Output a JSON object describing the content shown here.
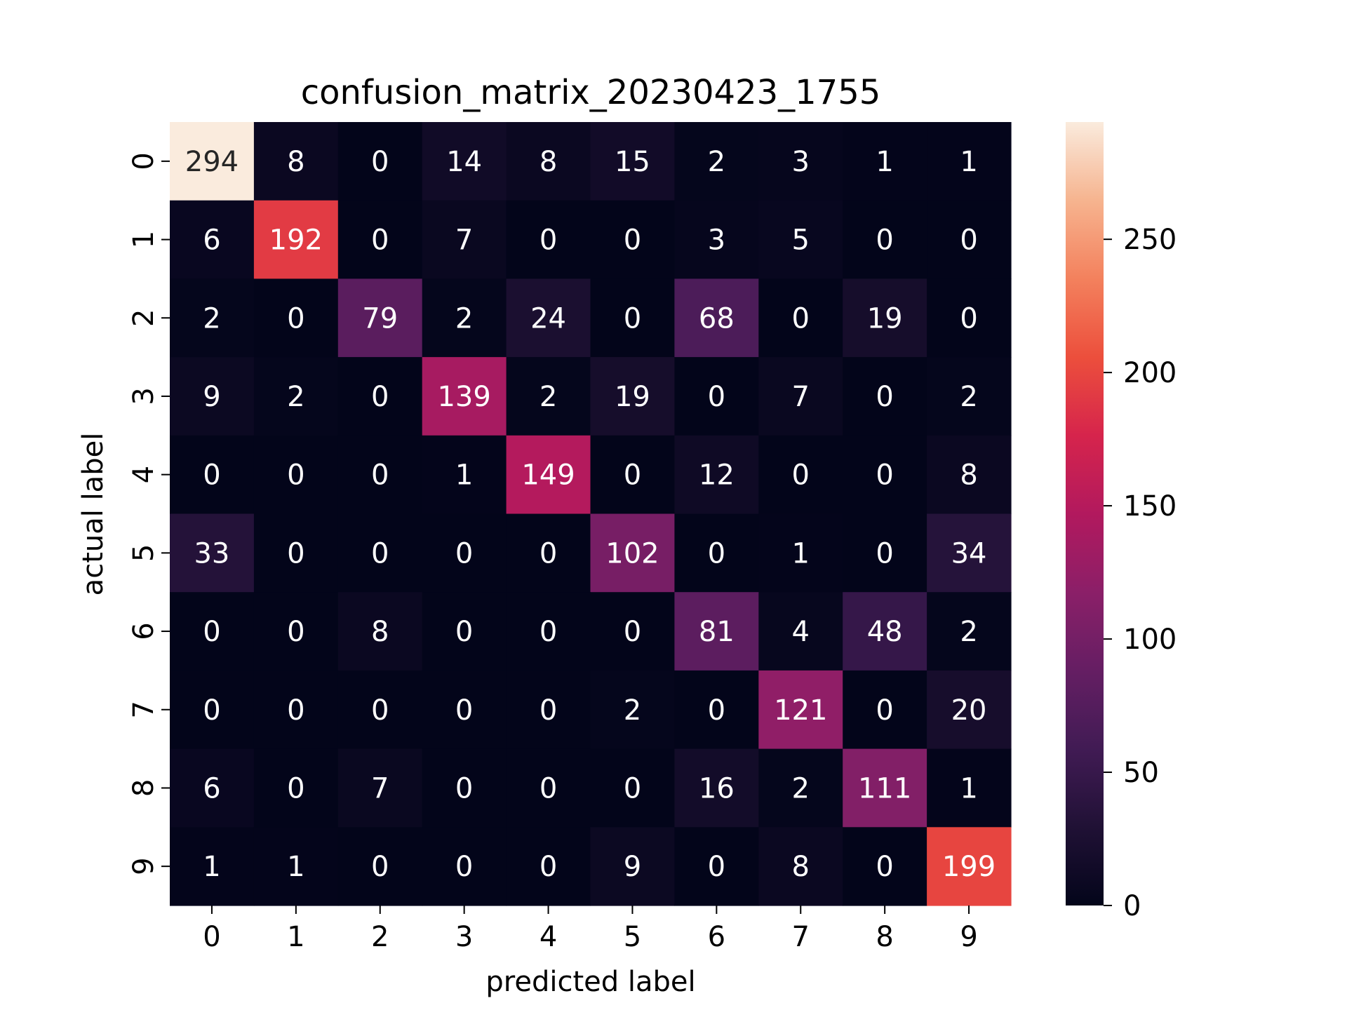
{
  "chart_data": {
    "type": "heatmap",
    "title": "confusion_matrix_20230423_1755",
    "xlabel": "predicted label",
    "ylabel": "actual label",
    "x_categories": [
      "0",
      "1",
      "2",
      "3",
      "4",
      "5",
      "6",
      "7",
      "8",
      "9"
    ],
    "y_categories": [
      "0",
      "1",
      "2",
      "3",
      "4",
      "5",
      "6",
      "7",
      "8",
      "9"
    ],
    "matrix": [
      [
        294,
        8,
        0,
        14,
        8,
        15,
        2,
        3,
        1,
        1
      ],
      [
        6,
        192,
        0,
        7,
        0,
        0,
        3,
        5,
        0,
        0
      ],
      [
        2,
        0,
        79,
        2,
        24,
        0,
        68,
        0,
        19,
        0
      ],
      [
        9,
        2,
        0,
        139,
        2,
        19,
        0,
        7,
        0,
        2
      ],
      [
        0,
        0,
        0,
        1,
        149,
        0,
        12,
        0,
        0,
        8
      ],
      [
        33,
        0,
        0,
        0,
        0,
        102,
        0,
        1,
        0,
        34
      ],
      [
        0,
        0,
        8,
        0,
        0,
        0,
        81,
        4,
        48,
        2
      ],
      [
        0,
        0,
        0,
        0,
        0,
        2,
        0,
        121,
        0,
        20
      ],
      [
        6,
        0,
        7,
        0,
        0,
        0,
        16,
        2,
        111,
        1
      ],
      [
        1,
        1,
        0,
        0,
        0,
        9,
        0,
        8,
        0,
        199
      ]
    ],
    "colorbar": {
      "colormap": "rocket",
      "range": [
        0,
        294
      ],
      "ticks": [
        0,
        50,
        100,
        150,
        200,
        250
      ],
      "tick_labels": [
        "0",
        "50",
        "100",
        "150",
        "200",
        "250"
      ]
    },
    "grid": false,
    "legend": "none"
  }
}
